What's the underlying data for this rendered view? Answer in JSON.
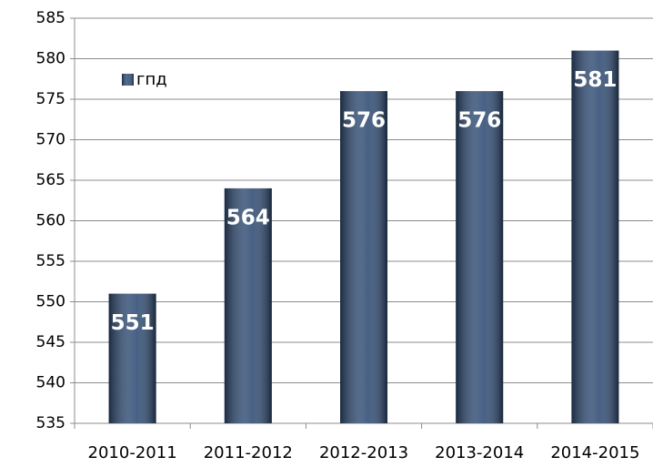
{
  "chart_data": {
    "type": "bar",
    "categories": [
      "2010-2011",
      "2011-2012",
      "2012-2013",
      "2013-2014",
      "2014-2015"
    ],
    "series": [
      {
        "name": "гпд",
        "color": "#2f4b73",
        "values": [
          551,
          564,
          576,
          576,
          581
        ]
      }
    ],
    "ylim": [
      535,
      585
    ],
    "yticks": [
      535,
      540,
      545,
      550,
      555,
      560,
      565,
      570,
      575,
      580,
      585
    ],
    "grid": true,
    "legend": "upper left",
    "data_labels": true
  }
}
